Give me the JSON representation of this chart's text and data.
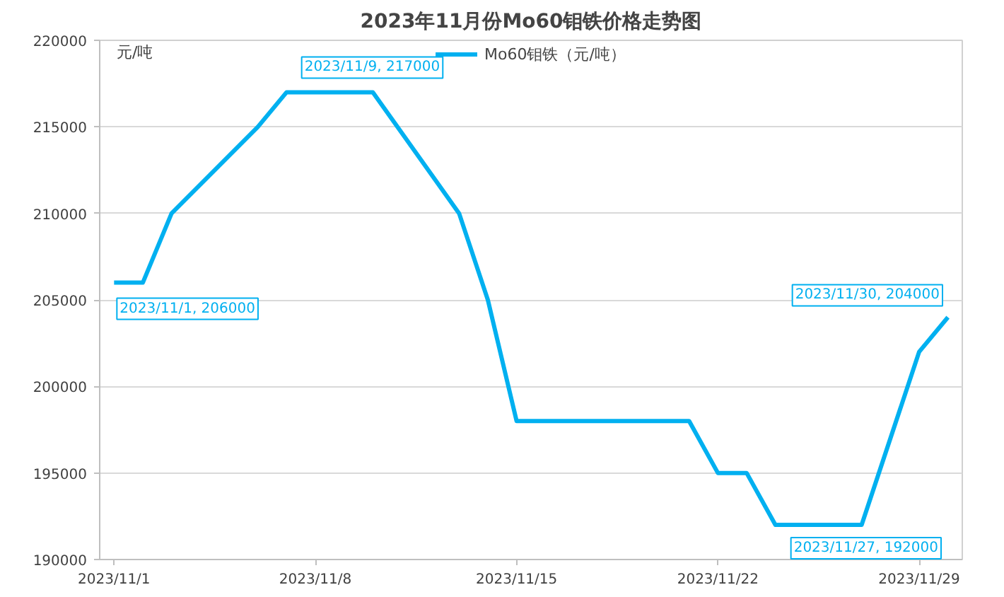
{
  "chart_data": {
    "type": "line",
    "title": "2023年11月份Mo60钼铁价格走势图",
    "ylabel": "元/吨",
    "x": [
      "2023-11-01",
      "2023-11-02",
      "2023-11-03",
      "2023-11-06",
      "2023-11-07",
      "2023-11-08",
      "2023-11-09",
      "2023-11-10",
      "2023-11-13",
      "2023-11-14",
      "2023-11-15",
      "2023-11-16",
      "2023-11-17",
      "2023-11-20",
      "2023-11-21",
      "2023-11-22",
      "2023-11-23",
      "2023-11-24",
      "2023-11-27",
      "2023-11-29",
      "2023-11-30"
    ],
    "series": [
      {
        "name": "Mo60钼铁（元/吨）",
        "color": "#00b0f0",
        "values": [
          206000,
          206000,
          210000,
          215000,
          217000,
          217000,
          217000,
          217000,
          210000,
          205000,
          198000,
          198000,
          198000,
          198000,
          198000,
          195000,
          195000,
          192000,
          192000,
          202000,
          204000
        ]
      }
    ],
    "xlim": [
      "2023-10-31T12:00",
      "2023-11-30T12:00"
    ],
    "xticks": [
      {
        "value": "2023-11-01",
        "label": "2023/11/1"
      },
      {
        "value": "2023-11-08",
        "label": "2023/11/8"
      },
      {
        "value": "2023-11-15",
        "label": "2023/11/15"
      },
      {
        "value": "2023-11-22",
        "label": "2023/11/22"
      },
      {
        "value": "2023-11-29",
        "label": "2023/11/29"
      }
    ],
    "ylim": [
      190000,
      220000
    ],
    "yticks": [
      190000,
      195000,
      200000,
      205000,
      210000,
      215000,
      220000
    ],
    "grid": "y",
    "legend": "top",
    "marker": "none",
    "line_style": "solid",
    "annotations": [
      {
        "text": "2023/11/1, 206000",
        "x": "2023-11-01",
        "y": 206000
      },
      {
        "text": "2023/11/9, 217000",
        "x": "2023-11-09",
        "y": 217000
      },
      {
        "text": "2023/11/30, 204000",
        "x": "2023-11-30",
        "y": 204000
      },
      {
        "text": "2023/11/27, 192000",
        "x": "2023-11-27",
        "y": 192000
      }
    ]
  }
}
